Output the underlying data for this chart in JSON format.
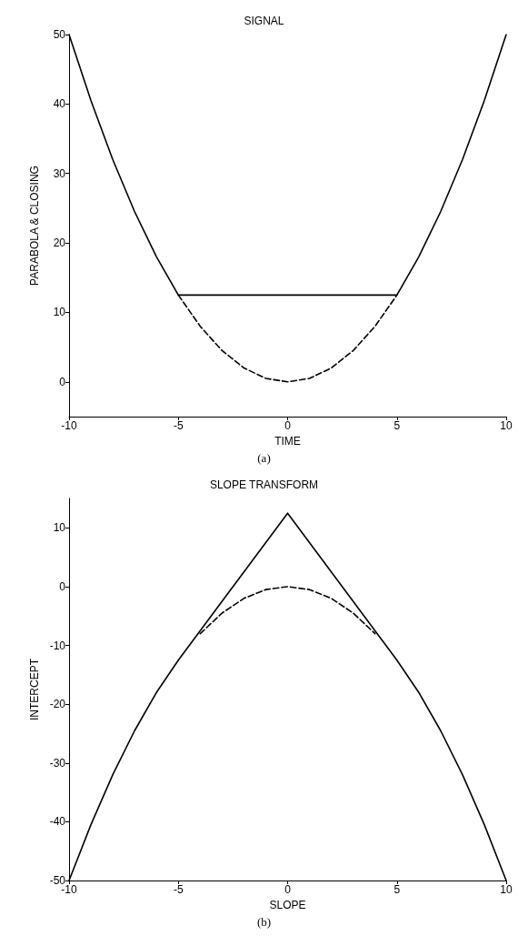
{
  "chart_data": [
    {
      "type": "line",
      "title": "SIGNAL",
      "xlabel": "TIME",
      "ylabel": "PARABOLA & CLOSING",
      "xlim": [
        -10,
        10
      ],
      "xticks": [
        -10,
        -5,
        0,
        5,
        10
      ],
      "ylim": [
        -5,
        50
      ],
      "yticks": [
        0,
        10,
        20,
        30,
        40,
        50
      ],
      "marker": "none",
      "annotations": [
        "(a)"
      ],
      "series": [
        {
          "color": "#000000",
          "line_style": "solid",
          "x": [
            -10,
            -9,
            -8,
            -7,
            -6,
            -5,
            5,
            6,
            7,
            8,
            9,
            10
          ],
          "values": [
            50,
            40.5,
            32,
            24.5,
            18,
            12.5,
            12.5,
            18,
            24.5,
            32,
            40.5,
            50
          ]
        },
        {
          "color": "#000000",
          "line_style": "dashed",
          "x": [
            -5,
            -4,
            -3,
            -2,
            -1,
            0,
            1,
            2,
            3,
            4,
            5
          ],
          "values": [
            12.5,
            8,
            4.5,
            2,
            0.5,
            0,
            0.5,
            2,
            4.5,
            8,
            12.5
          ]
        }
      ]
    },
    {
      "type": "line",
      "title": "SLOPE TRANSFORM",
      "xlabel": "SLOPE",
      "ylabel": "INTERCEPT",
      "xlim": [
        -10,
        10
      ],
      "xticks": [
        -10,
        -5,
        0,
        5,
        10
      ],
      "ylim": [
        -50,
        15
      ],
      "yticks": [
        -50,
        -40,
        -30,
        -20,
        -10,
        0,
        10
      ],
      "marker": "none",
      "annotations": [
        "(b)"
      ],
      "series": [
        {
          "color": "#000000",
          "line_style": "solid",
          "x": [
            -10,
            -9,
            -8,
            -7,
            -6,
            -5,
            0,
            5,
            6,
            7,
            8,
            9,
            10
          ],
          "values": [
            -50,
            -40.5,
            -32,
            -24.5,
            -18,
            -12.5,
            12.5,
            -12.5,
            -18,
            -24.5,
            -32,
            -40.5,
            -50
          ]
        },
        {
          "color": "#000000",
          "line_style": "dashed",
          "x": [
            -4,
            -3,
            -2,
            -1,
            0,
            1,
            2,
            3,
            4
          ],
          "values": [
            -8,
            -4.5,
            -2,
            -0.5,
            0,
            -0.5,
            -2,
            -4.5,
            -8
          ]
        }
      ]
    }
  ]
}
